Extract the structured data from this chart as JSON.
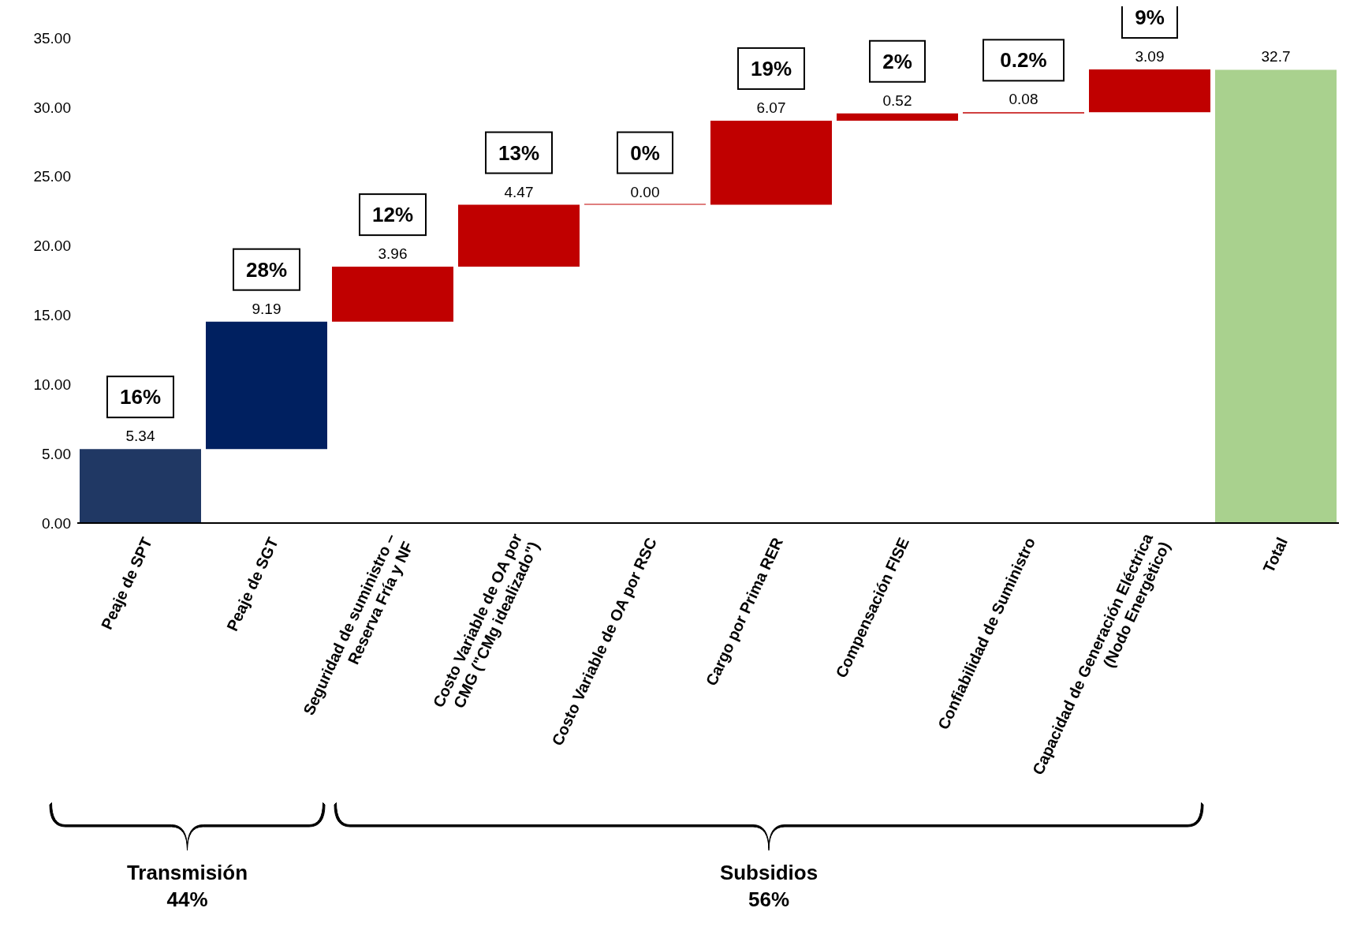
{
  "chart_data": {
    "type": "bar",
    "categories": [
      "Peaje de SPT",
      "Peaje de SGT",
      "Seguridad de suministro –\nReserva Fría y NF",
      "Costo Variable de OA por\nCMG (\"CMg idealizado\")",
      "Costo Variable de OA por RSC",
      "Cargo por Prima RER",
      "Compensación FISE",
      "Confiabilidad  de Suministro",
      "Capacidad  de Generación Eléctrica\n(Nodo Energètico)",
      "Total"
    ],
    "values": [
      5.34,
      9.19,
      3.96,
      4.47,
      0.0,
      6.07,
      0.52,
      0.08,
      3.09,
      32.7
    ],
    "base": [
      0,
      5.34,
      14.53,
      18.49,
      22.96,
      22.96,
      29.03,
      29.55,
      29.63,
      0
    ],
    "colors": [
      "#203864",
      "#002060",
      "#c00000",
      "#c00000",
      "#c00000",
      "#c00000",
      "#c00000",
      "#c00000",
      "#c00000",
      "#a9d18e"
    ],
    "value_labels": [
      "5.34",
      "9.19",
      "3.96",
      "4.47",
      "0.00",
      "6.07",
      "0.52",
      "0.08",
      "3.09",
      "32.7"
    ],
    "ylim": [
      0,
      35
    ],
    "yticks": [
      {
        "value": 0,
        "label": "0.00"
      },
      {
        "value": 5,
        "label": "5.00"
      },
      {
        "value": 10,
        "label": "10.00"
      },
      {
        "value": 15,
        "label": "15.00"
      },
      {
        "value": 20,
        "label": "20.00"
      },
      {
        "value": 25,
        "label": "25.00"
      },
      {
        "value": 30,
        "label": "30.00"
      },
      {
        "value": 35,
        "label": "35.00"
      }
    ],
    "grid": false,
    "legend": false,
    "annotations": [
      {
        "text": "16%",
        "x": "Peaje de SPT",
        "y": 5.34
      },
      {
        "text": "28%",
        "x": "Peaje de SGT",
        "y": 14.53
      },
      {
        "text": "12%",
        "x": "Seguridad de suministro –\nReserva Fría y NF",
        "y": 18.49
      },
      {
        "text": "13%",
        "x": "Costo Variable de OA por\nCMG (\"CMg idealizado\")",
        "y": 22.96
      },
      {
        "text": "0%",
        "x": "Costo Variable de OA por RSC",
        "y": 22.96
      },
      {
        "text": "19%",
        "x": "Cargo por Prima RER",
        "y": 29.03
      },
      {
        "text": "2%",
        "x": "Compensación FISE",
        "y": 29.55
      },
      {
        "text": "0.2%",
        "x": "Confiabilidad  de Suministro",
        "y": 29.63
      },
      {
        "text": "9%",
        "x": "Capacidad  de Generación Eléctrica\n(Nodo Energètico)",
        "y": 32.72
      },
      "Transmisión\n44%",
      "Subsidios\n56%"
    ]
  }
}
